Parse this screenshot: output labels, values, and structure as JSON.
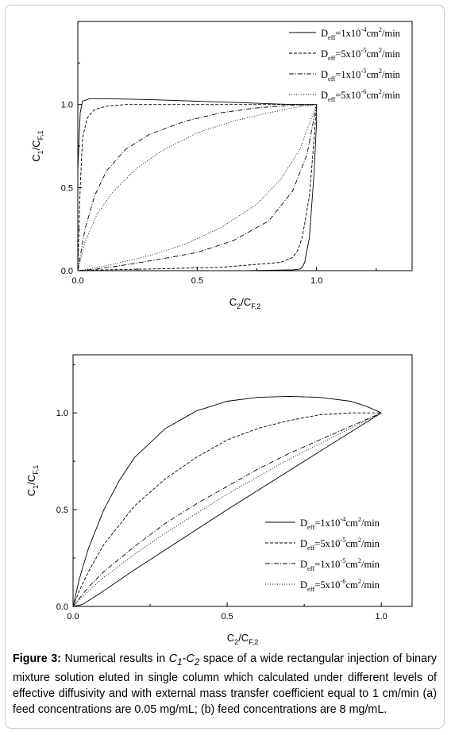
{
  "chart_data": [
    {
      "type": "line",
      "xlabel": "C2/CF,2",
      "ylabel": "C1/CF,1",
      "xlim": [
        0,
        1.4
      ],
      "ylim": [
        0,
        1.5
      ],
      "xticks": [
        "0.0",
        "0.5",
        "1.0"
      ],
      "yticks": [
        "0.0",
        "0.5",
        "1.0"
      ],
      "legend_position": "top-right",
      "series": [
        {
          "name": "Deff=1x10-4cm2/min",
          "style": "solid",
          "x": [
            0.0,
            0.0,
            0.01,
            0.02,
            0.05,
            0.1,
            0.3,
            0.5,
            0.7,
            0.9,
            1.0,
            1.0,
            0.99,
            0.97,
            0.95,
            0.94,
            0.93,
            0.9,
            0.7,
            0.4,
            0.1,
            0.0
          ],
          "y": [
            0.0,
            0.6,
            0.95,
            1.02,
            1.035,
            1.035,
            1.03,
            1.02,
            1.01,
            1.0,
            1.0,
            0.9,
            0.6,
            0.2,
            0.05,
            0.02,
            0.01,
            0.005,
            0.0,
            0.0,
            0.0,
            0.0
          ]
        },
        {
          "name": "Deff=5x10-5cm2/min",
          "style": "dashed",
          "x": [
            0.0,
            0.01,
            0.02,
            0.04,
            0.07,
            0.12,
            0.2,
            0.4,
            0.6,
            0.8,
            1.0,
            0.99,
            0.97,
            0.94,
            0.92,
            0.9,
            0.85,
            0.6,
            0.3,
            0.1,
            0.0
          ],
          "y": [
            0.0,
            0.5,
            0.8,
            0.92,
            0.97,
            0.99,
            1.0,
            1.0,
            1.0,
            1.0,
            1.0,
            0.8,
            0.45,
            0.2,
            0.12,
            0.08,
            0.05,
            0.02,
            0.01,
            0.005,
            0.0
          ]
        },
        {
          "name": "Deff=1x10-5cm2/min",
          "style": "dashdot",
          "x": [
            0.0,
            0.03,
            0.07,
            0.12,
            0.2,
            0.3,
            0.45,
            0.6,
            0.75,
            0.9,
            1.0,
            0.96,
            0.9,
            0.8,
            0.65,
            0.5,
            0.35,
            0.2,
            0.08,
            0.0
          ],
          "y": [
            0.0,
            0.25,
            0.45,
            0.6,
            0.73,
            0.82,
            0.9,
            0.95,
            0.98,
            0.995,
            1.0,
            0.7,
            0.48,
            0.3,
            0.18,
            0.11,
            0.07,
            0.035,
            0.01,
            0.0
          ]
        },
        {
          "name": "Deff=5x10-6cm2/min",
          "style": "dotted",
          "x": [
            0.0,
            0.03,
            0.08,
            0.15,
            0.25,
            0.35,
            0.5,
            0.65,
            0.8,
            0.9,
            1.0,
            0.93,
            0.85,
            0.75,
            0.6,
            0.45,
            0.3,
            0.15,
            0.05,
            0.0
          ],
          "y": [
            0.0,
            0.17,
            0.34,
            0.48,
            0.62,
            0.72,
            0.83,
            0.9,
            0.95,
            0.98,
            1.0,
            0.73,
            0.55,
            0.4,
            0.26,
            0.16,
            0.09,
            0.04,
            0.01,
            0.0
          ]
        }
      ]
    },
    {
      "type": "line",
      "xlabel": "C2/CF,2",
      "ylabel": "C1/CF,1",
      "xlim": [
        0,
        1.1
      ],
      "ylim": [
        0,
        1.3
      ],
      "xticks": [
        "0.0",
        "0.5",
        "1.0"
      ],
      "yticks": [
        "0.0",
        "0.5",
        "1.0"
      ],
      "legend_position": "bottom-right",
      "series": [
        {
          "name": "Deff=1x10-4cm2/min",
          "style": "solid",
          "x": [
            0.0,
            0.02,
            0.05,
            0.1,
            0.15,
            0.2,
            0.3,
            0.4,
            0.5,
            0.6,
            0.7,
            0.8,
            0.9,
            0.95,
            1.0
          ],
          "y": [
            0.0,
            0.14,
            0.3,
            0.5,
            0.65,
            0.77,
            0.92,
            1.01,
            1.06,
            1.08,
            1.085,
            1.08,
            1.06,
            1.035,
            1.0
          ],
          "x2": [
            0.0,
            0.03,
            0.05,
            0.08,
            0.2,
            0.5,
            0.8,
            1.0
          ],
          "y2": [
            0.0,
            0.01,
            0.03,
            0.06,
            0.19,
            0.5,
            0.8,
            1.0
          ]
        },
        {
          "name": "Deff=5x10-5cm2/min",
          "style": "dashed",
          "x": [
            0.0,
            0.02,
            0.05,
            0.1,
            0.2,
            0.3,
            0.4,
            0.5,
            0.6,
            0.7,
            0.8,
            0.9,
            1.0
          ],
          "y": [
            0.0,
            0.08,
            0.18,
            0.32,
            0.52,
            0.66,
            0.77,
            0.86,
            0.92,
            0.96,
            0.99,
            1.0,
            1.0
          ]
        },
        {
          "name": "Deff=1x10-5cm2/min",
          "style": "dashdot",
          "x": [
            0.0,
            0.05,
            0.1,
            0.2,
            0.3,
            0.4,
            0.5,
            0.6,
            0.7,
            0.8,
            0.9,
            1.0
          ],
          "y": [
            0.0,
            0.1,
            0.18,
            0.31,
            0.43,
            0.53,
            0.62,
            0.71,
            0.79,
            0.86,
            0.93,
            1.0
          ]
        },
        {
          "name": "Deff=5x10-6cm2/min",
          "style": "dotted",
          "x": [
            0.0,
            0.05,
            0.1,
            0.2,
            0.3,
            0.4,
            0.5,
            0.6,
            0.7,
            0.8,
            0.9,
            1.0
          ],
          "y": [
            0.0,
            0.08,
            0.15,
            0.27,
            0.38,
            0.48,
            0.58,
            0.67,
            0.76,
            0.84,
            0.92,
            1.0
          ]
        }
      ]
    }
  ],
  "legend_labels": [
    {
      "base": "D",
      "sub": "eff",
      "eq": "=1x10",
      "exp": "-4",
      "unit": "cm",
      "uexp": "2",
      "tail": "/min"
    },
    {
      "base": "D",
      "sub": "eff",
      "eq": "=5x10",
      "exp": "-5",
      "unit": "cm",
      "uexp": "2",
      "tail": "/min"
    },
    {
      "base": "D",
      "sub": "eff",
      "eq": "=1x10",
      "exp": "-5",
      "unit": "cm",
      "uexp": "2",
      "tail": "/min"
    },
    {
      "base": "D",
      "sub": "eff",
      "eq": "=5x10",
      "exp": "-6",
      "unit": "cm",
      "uexp": "2",
      "tail": "/min"
    }
  ],
  "axis_text": {
    "x": {
      "base": "C",
      "s1": "2",
      "slash": "/C",
      "s2": "F,2"
    },
    "y": {
      "base": "C",
      "s1": "1",
      "slash": "/C",
      "s2": "F,1"
    }
  },
  "caption": {
    "label": "Figure 3:",
    "t1": " Numerical results in ",
    "c1": "C",
    "s1": "1",
    "dash": "-",
    "c2": "C",
    "s2": "2",
    "t2": " space of a wide rectangular injection of binary mixture solution eluted in single column which calculated under different levels of effective diffusivity and with external mass transfer coefficient equal to 1 cm/min (a) feed concentrations are 0.05 mg/mL; (b) feed concentrations are 8 mg/mL."
  }
}
